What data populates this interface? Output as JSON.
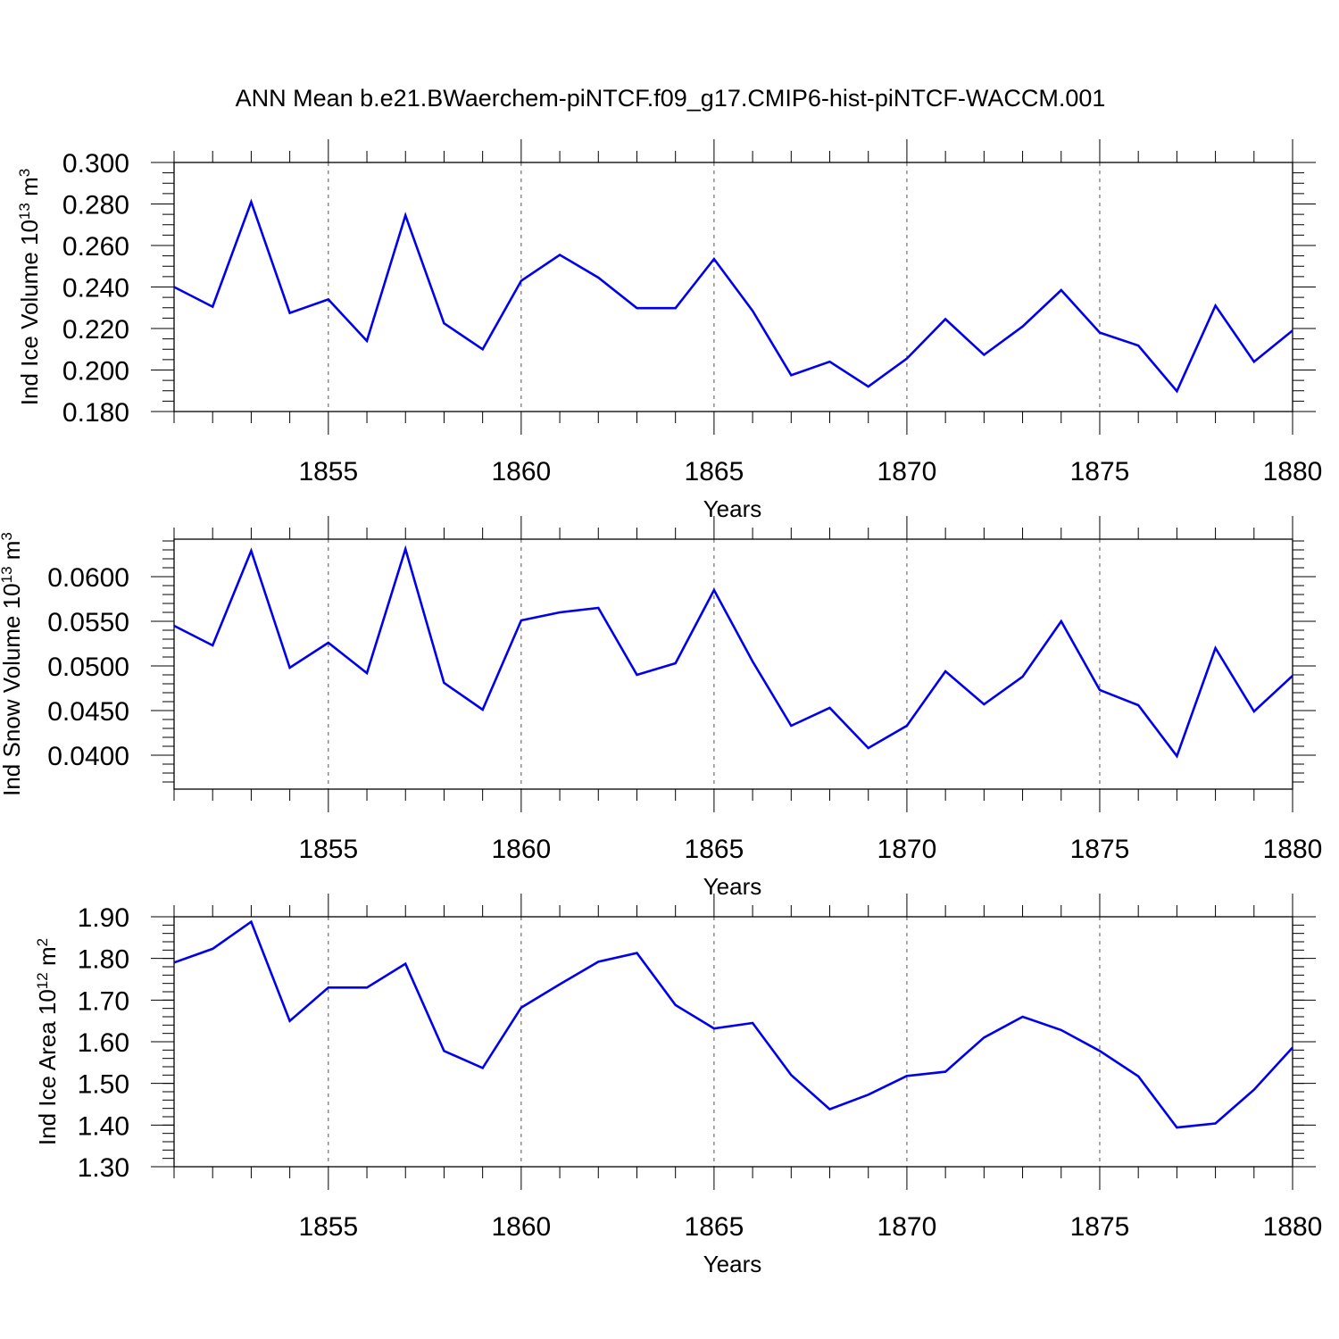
{
  "figure": {
    "title": "ANN Mean b.e21.BWaerchem-piNTCF.f09_g17.CMIP6-hist-piNTCF-WACCM.001"
  },
  "colors": {
    "line": "#0000ee",
    "axis": "#000000",
    "grid": "#555555",
    "background": "#ffffff"
  },
  "chart_data": [
    {
      "type": "line",
      "title": "ANN Mean b.e21.BWaerchem-piNTCF.f09_g17.CMIP6-hist-piNTCF-WACCM.001",
      "ylabel_main": "Ind Ice Volume 10",
      "ylabel_exp": "13",
      "ylabel_unit": " m",
      "ylabel_unit_exp": "3",
      "xlabel": "Years",
      "xlim": [
        1851,
        1880
      ],
      "ylim": [
        0.18,
        0.3
      ],
      "yticks": [
        0.18,
        0.2,
        0.22,
        0.24,
        0.26,
        0.28,
        0.3
      ],
      "ytick_labels": [
        "0.180",
        "0.200",
        "0.220",
        "0.240",
        "0.260",
        "0.280",
        "0.300"
      ],
      "yminor_step": 0.005,
      "xticks": [
        1855,
        1860,
        1865,
        1870,
        1875,
        1880
      ],
      "xtick_labels": [
        "1855",
        "1860",
        "1865",
        "1870",
        "1875",
        "1880"
      ],
      "grid": "vertical dashed at major x ticks",
      "x": [
        1851,
        1852,
        1853,
        1854,
        1855,
        1856,
        1857,
        1858,
        1859,
        1860,
        1861,
        1862,
        1863,
        1864,
        1865,
        1866,
        1867,
        1868,
        1869,
        1870,
        1871,
        1872,
        1873,
        1874,
        1875,
        1876,
        1877,
        1878,
        1879,
        1880
      ],
      "series": [
        {
          "name": "Ind Ice Volume",
          "values": [
            0.24,
            0.2305,
            0.281,
            0.2275,
            0.234,
            0.214,
            0.2745,
            0.2225,
            0.21,
            0.243,
            0.2555,
            0.2445,
            0.2298,
            0.2298,
            0.2535,
            0.2285,
            0.1975,
            0.204,
            0.192,
            0.2055,
            0.2245,
            0.2073,
            0.221,
            0.2385,
            0.218,
            0.2118,
            0.1898,
            0.231,
            0.204,
            0.219
          ]
        }
      ]
    },
    {
      "type": "line",
      "ylabel_main": "Ind Snow Volume 10",
      "ylabel_exp": "13",
      "ylabel_unit": " m",
      "ylabel_unit_exp": "3",
      "xlabel": "Years",
      "xlim": [
        1851,
        1880
      ],
      "ylim": [
        0.0362,
        0.0642
      ],
      "yticks": [
        0.04,
        0.045,
        0.05,
        0.055,
        0.06
      ],
      "ytick_labels": [
        "0.0400",
        "0.0450",
        "0.0500",
        "0.0550",
        "0.0600"
      ],
      "yminor_step": 0.001,
      "xticks": [
        1855,
        1860,
        1865,
        1870,
        1875,
        1880
      ],
      "xtick_labels": [
        "1855",
        "1860",
        "1865",
        "1870",
        "1875",
        "1880"
      ],
      "grid": "vertical dashed at major x ticks",
      "x": [
        1851,
        1852,
        1853,
        1854,
        1855,
        1856,
        1857,
        1858,
        1859,
        1860,
        1861,
        1862,
        1863,
        1864,
        1865,
        1866,
        1867,
        1868,
        1869,
        1870,
        1871,
        1872,
        1873,
        1874,
        1875,
        1876,
        1877,
        1878,
        1879,
        1880
      ],
      "series": [
        {
          "name": "Ind Snow Volume",
          "values": [
            0.0545,
            0.0523,
            0.0629,
            0.0498,
            0.0526,
            0.0492,
            0.0631,
            0.0481,
            0.0451,
            0.0551,
            0.056,
            0.0565,
            0.049,
            0.0503,
            0.0585,
            0.0505,
            0.0433,
            0.0453,
            0.0408,
            0.0433,
            0.0494,
            0.0457,
            0.0488,
            0.055,
            0.0473,
            0.0456,
            0.0399,
            0.052,
            0.0449,
            0.0489
          ]
        }
      ]
    },
    {
      "type": "line",
      "ylabel_main": "Ind Ice Area 10",
      "ylabel_exp": "12",
      "ylabel_unit": " m",
      "ylabel_unit_exp": "2",
      "xlabel": "Years",
      "xlim": [
        1851,
        1880
      ],
      "ylim": [
        1.3,
        1.9
      ],
      "yticks": [
        1.3,
        1.4,
        1.5,
        1.6,
        1.7,
        1.8,
        1.9
      ],
      "ytick_labels": [
        "1.30",
        "1.40",
        "1.50",
        "1.60",
        "1.70",
        "1.80",
        "1.90"
      ],
      "yminor_step": 0.02,
      "xticks": [
        1855,
        1860,
        1865,
        1870,
        1875,
        1880
      ],
      "xtick_labels": [
        "1855",
        "1860",
        "1865",
        "1870",
        "1875",
        "1880"
      ],
      "grid": "vertical dashed at major x ticks",
      "x": [
        1851,
        1852,
        1853,
        1854,
        1855,
        1856,
        1857,
        1858,
        1859,
        1860,
        1861,
        1862,
        1863,
        1864,
        1865,
        1866,
        1867,
        1868,
        1869,
        1870,
        1871,
        1872,
        1873,
        1874,
        1875,
        1876,
        1877,
        1878,
        1879,
        1880
      ],
      "series": [
        {
          "name": "Ind Ice Area",
          "values": [
            1.79,
            1.823,
            1.888,
            1.65,
            1.73,
            1.73,
            1.787,
            1.578,
            1.537,
            1.682,
            1.738,
            1.792,
            1.813,
            1.688,
            1.632,
            1.645,
            1.52,
            1.438,
            1.473,
            1.518,
            1.528,
            1.61,
            1.66,
            1.628,
            1.578,
            1.517,
            1.394,
            1.404,
            1.485,
            1.586
          ]
        }
      ]
    }
  ]
}
